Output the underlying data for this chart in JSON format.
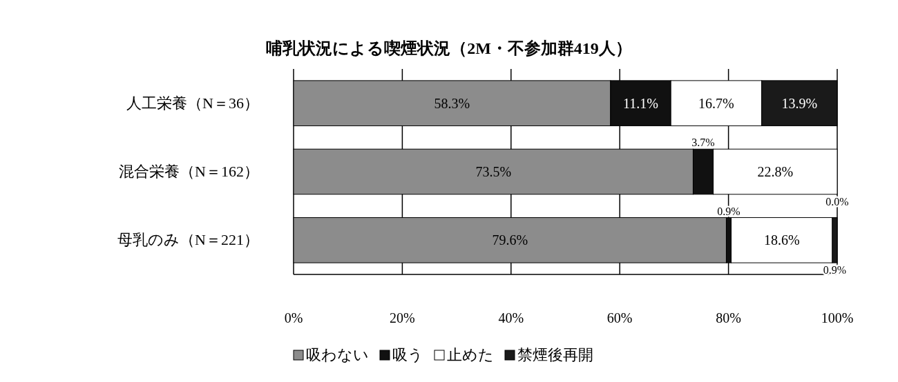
{
  "chart_data": {
    "type": "bar",
    "title": "哺乳状況による喫煙状況（2M・不参加群419人）",
    "categories": [
      "人工栄養（N＝36）",
      "混合栄養（N＝162）",
      "母乳のみ（N＝221）"
    ],
    "orientation": "horizontal",
    "stacked": true,
    "series": [
      {
        "name": "吸わない",
        "color": "#8c8c8c",
        "values": [
          58.3,
          73.5,
          79.6
        ],
        "value_labels": [
          "58.3%",
          "73.5%",
          "79.6%"
        ]
      },
      {
        "name": "吸う",
        "color": "#111111",
        "values": [
          11.1,
          3.7,
          0.9
        ],
        "value_labels": [
          "11.1%",
          "3.7%",
          "0.9%"
        ]
      },
      {
        "name": "止めた",
        "color": "#ffffff",
        "values": [
          16.7,
          22.8,
          18.6
        ],
        "value_labels": [
          "16.7%",
          "22.8%",
          "18.6%"
        ]
      },
      {
        "name": "禁煙後再開",
        "color": "#1a1a1a",
        "values": [
          13.9,
          0.0,
          0.9
        ],
        "value_labels": [
          "13.9%",
          "0.0%",
          "0.9%"
        ]
      }
    ],
    "xlim": [
      0,
      100
    ],
    "xticks": [
      {
        "value": 0,
        "label": "0%"
      },
      {
        "value": 20,
        "label": "20%"
      },
      {
        "value": 40,
        "label": "40%"
      },
      {
        "value": 60,
        "label": "60%"
      },
      {
        "value": 80,
        "label": "80%"
      },
      {
        "value": 100,
        "label": "100%"
      }
    ],
    "grid": "x",
    "legend": "bottom"
  }
}
